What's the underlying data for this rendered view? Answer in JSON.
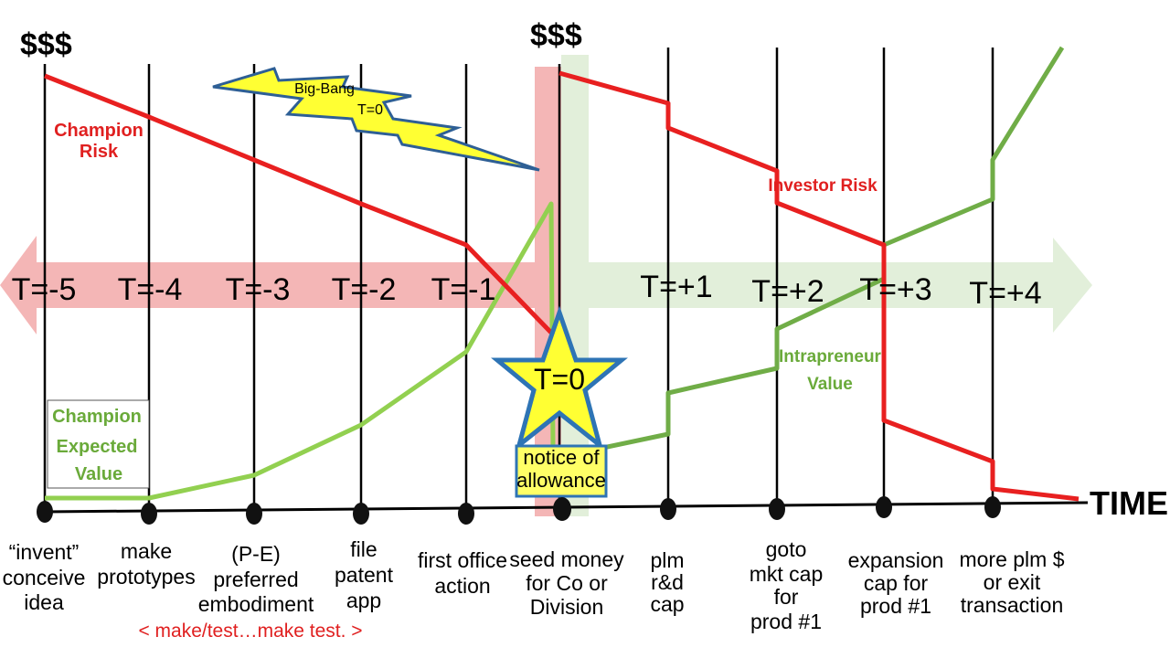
{
  "currency_top_left": "$$$",
  "currency_top_mid": "$$$",
  "big_bang": {
    "line1": "Big-Bang",
    "line2": "T=0"
  },
  "time_steps_before": [
    "T=-5",
    "T=-4",
    "T=-3",
    "T=-2",
    "T=-1"
  ],
  "time_steps_after": [
    "T=+1",
    "T=+2",
    "T=+3",
    "T=+4"
  ],
  "star_label": "T=0",
  "notice_box": {
    "line1": "notice of",
    "line2": "allowance"
  },
  "champion_risk": {
    "line1": "Champion",
    "line2": "Risk"
  },
  "investor_risk": "Investor Risk",
  "champion_value": {
    "line1": "Champion",
    "line2": "Expected",
    "line3": "Value"
  },
  "intrapreneur_value": {
    "line1": "Intrapreneur",
    "line2": "Value"
  },
  "axis_title": "TIME",
  "milestones": [
    {
      "lines": [
        "“invent”",
        "conceive",
        "idea"
      ]
    },
    {
      "lines": [
        "make",
        "prototypes"
      ]
    },
    {
      "lines": [
        "(P-E)",
        "preferred",
        "embodiment"
      ]
    },
    {
      "lines": [
        "file",
        "patent",
        "app"
      ]
    },
    {
      "lines": [
        "first office",
        "action"
      ]
    },
    {
      "lines": [
        "seed money",
        "for Co or",
        "Division"
      ]
    },
    {
      "lines": [
        "plm",
        "r&d",
        "cap"
      ]
    },
    {
      "lines": [
        "goto",
        "mkt cap",
        "for",
        "prod #1"
      ]
    },
    {
      "lines": [
        "expansion",
        "cap for",
        "prod #1"
      ]
    },
    {
      "lines": [
        "more plm $",
        "or exit",
        "transaction"
      ]
    }
  ],
  "iterate_note": "<  make/test…make test. >",
  "colors": {
    "risk_red": "#e82020",
    "value_light_green": "#92d050",
    "value_dark_green": "#70ad47",
    "pink_arrow": "#f4b6b6",
    "green_arrow": "#e2efda",
    "star_fill": "#ffff33",
    "star_stroke": "#2e74b5",
    "label_red": "#e02020",
    "label_green": "#6aaa3a"
  }
}
